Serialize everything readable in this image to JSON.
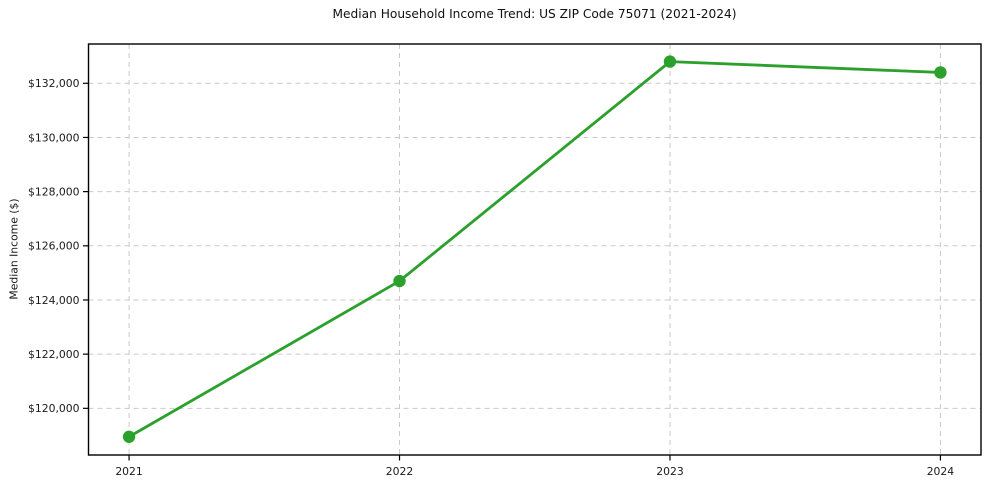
{
  "title": "Median Household Income Trend: US ZIP Code 75071 (2021-2024)",
  "chart_data": {
    "type": "line",
    "title": "Median Household Income Trend: US ZIP Code 75071 (2021-2024)",
    "xlabel": "",
    "ylabel": "Median Income ($)",
    "x": [
      2021,
      2022,
      2023,
      2024
    ],
    "x_tick_labels": [
      "2021",
      "2022",
      "2023",
      "2024"
    ],
    "series": [
      {
        "name": "Median Household Income",
        "values": [
          118950,
          124700,
          132800,
          132400
        ]
      }
    ],
    "y_ticks": [
      120000,
      122000,
      124000,
      126000,
      128000,
      130000,
      132000
    ],
    "y_tick_labels": [
      "$120,000",
      "$122,000",
      "$124,000",
      "$126,000",
      "$128,000",
      "$130,000",
      "$132,000"
    ],
    "xlim": [
      2020.85,
      2024.15
    ],
    "ylim": [
      118277,
      133450
    ],
    "grid": true,
    "legend_position": "none",
    "line_color": "#2ca02c",
    "marker": "circle",
    "grid_color": "#c9c9c9",
    "axis_color": "#000000",
    "text_color": "#1a1a1a"
  }
}
